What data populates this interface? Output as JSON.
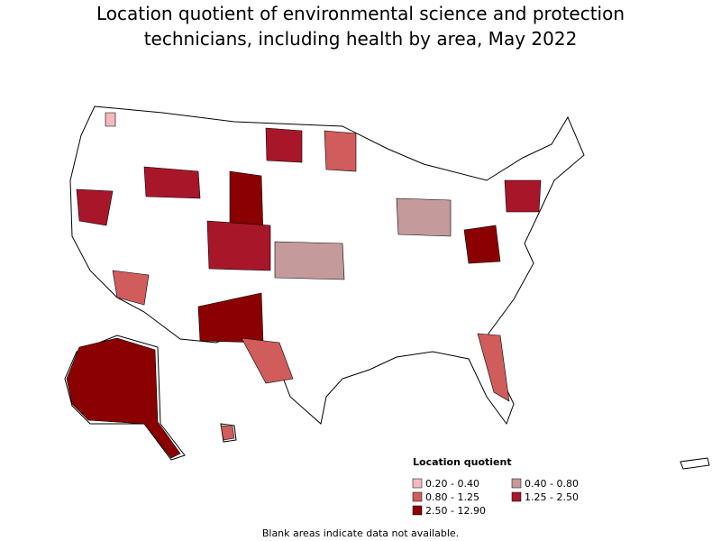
{
  "title_lines": [
    "Location quotient of environmental science and protection",
    "technicians, including health by area, May 2022"
  ],
  "legend": {
    "title": "Location quotient",
    "items": [
      {
        "label": "0.20 - 0.40",
        "color": "#f4b8bd"
      },
      {
        "label": "0.40 - 0.80",
        "color": "#c49a9a"
      },
      {
        "label": "0.80 - 1.25",
        "color": "#d05c5c"
      },
      {
        "label": "1.25 - 2.50",
        "color": "#a8162a"
      },
      {
        "label": "2.50 - 12.90",
        "color": "#8b0000"
      }
    ]
  },
  "footnote": "Blank areas indicate data not available."
}
